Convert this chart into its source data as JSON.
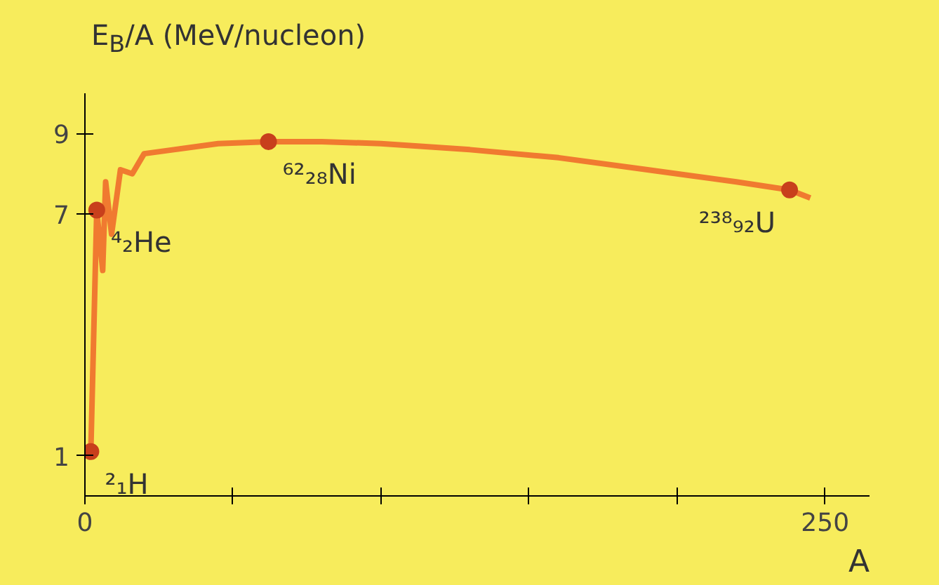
{
  "chart_data": {
    "type": "line",
    "ylabel": "E$_{B}$/A (MeV/nucleon)",
    "xlabel": "A",
    "xlim": [
      0,
      265
    ],
    "ylim": [
      0,
      10
    ],
    "xticks": [
      0,
      {
        "value": 50,
        "label": null
      },
      {
        "value": 100,
        "label": null
      },
      {
        "value": 150,
        "label": null
      },
      {
        "value": 200,
        "label": null
      },
      250
    ],
    "yticks": [
      1,
      7,
      9
    ],
    "grid": false,
    "marker": "none",
    "line_style": "solid",
    "series": [
      {
        "color": "#f07a30",
        "x": [
          2,
          4,
          6,
          7,
          9,
          12,
          16,
          20,
          30,
          45,
          62,
          80,
          100,
          130,
          160,
          190,
          220,
          238,
          245
        ],
        "values": [
          1.1,
          7.1,
          5.6,
          7.8,
          6.5,
          8.1,
          8.0,
          8.5,
          8.6,
          8.75,
          8.8,
          8.8,
          8.75,
          8.6,
          8.4,
          8.1,
          7.8,
          7.6,
          7.4
        ]
      },
      {
        "type": "scatter",
        "marker": "circle",
        "color": "#c8401c",
        "x": [
          2,
          4,
          62,
          238
        ],
        "values": [
          1.1,
          7.1,
          8.8,
          7.6
        ]
      }
    ],
    "annotations": [
      {
        "text": "²₁H",
        "x": 2,
        "y": 1.1
      },
      {
        "text": "⁴₂He",
        "x": 4,
        "y": 7.1
      },
      {
        "text": "⁶²₂₈Ni",
        "x": 62,
        "y": 8.8
      },
      {
        "text": "²³⁸₉₂U",
        "x": 238,
        "y": 7.6
      }
    ]
  }
}
